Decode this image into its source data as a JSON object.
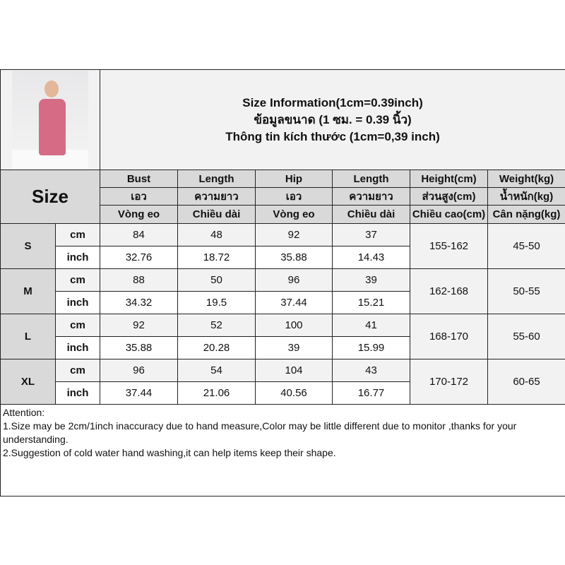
{
  "header": {
    "title_lines": [
      "Size Information(1cm=0.39inch)",
      "ข้อมูลขนาด (1 ซม. = 0.39 นิ้ว)",
      "Thông tin kích thước (1cm=0,39 inch)"
    ],
    "size_label": "Size"
  },
  "columns": [
    {
      "en": "Bust",
      "th": "เอว",
      "vi": "Vòng eo"
    },
    {
      "en": "Length",
      "th": "ความยาว",
      "vi": "Chiều dài"
    },
    {
      "en": "Hip",
      "th": "เอว",
      "vi": "Vòng eo"
    },
    {
      "en": "Length",
      "th": "ความยาว",
      "vi": "Chiều dài"
    },
    {
      "en": "Height(cm)",
      "th": "ส่วนสูง(cm)",
      "vi": "Chiều cao(cm)"
    },
    {
      "en": "Weight(kg)",
      "th": "น้ำหนัก(kg)",
      "vi": "Cân nặng(kg)"
    }
  ],
  "units": {
    "cm": "cm",
    "inch": "inch"
  },
  "sizes": [
    {
      "size": "S",
      "cm": [
        "84",
        "48",
        "92",
        "37"
      ],
      "inch": [
        "32.76",
        "18.72",
        "35.88",
        "14.43"
      ],
      "height": "155-162",
      "weight": "45-50"
    },
    {
      "size": "M",
      "cm": [
        "88",
        "50",
        "96",
        "39"
      ],
      "inch": [
        "34.32",
        "19.5",
        "37.44",
        "15.21"
      ],
      "height": "162-168",
      "weight": "50-55"
    },
    {
      "size": "L",
      "cm": [
        "92",
        "52",
        "100",
        "41"
      ],
      "inch": [
        "35.88",
        "20.28",
        "39",
        "15.99"
      ],
      "height": "168-170",
      "weight": "55-60"
    },
    {
      "size": "XL",
      "cm": [
        "96",
        "54",
        "104",
        "43"
      ],
      "inch": [
        "37.44",
        "21.06",
        "40.56",
        "16.77"
      ],
      "height": "170-172",
      "weight": "60-65"
    }
  ],
  "attention": {
    "heading": "Attention:",
    "lines": [
      "1.Size may be 2cm/1inch inaccuracy due to hand measure,Color may be little different due to monitor ,thanks for your understanding.",
      "2.Suggestion of cold water hand washing,it can help items keep their shape."
    ]
  },
  "colors": {
    "header_bg": "#d9d9d9",
    "cm_row_bg": "#f2f2f2",
    "inch_row_bg": "#ffffff"
  }
}
